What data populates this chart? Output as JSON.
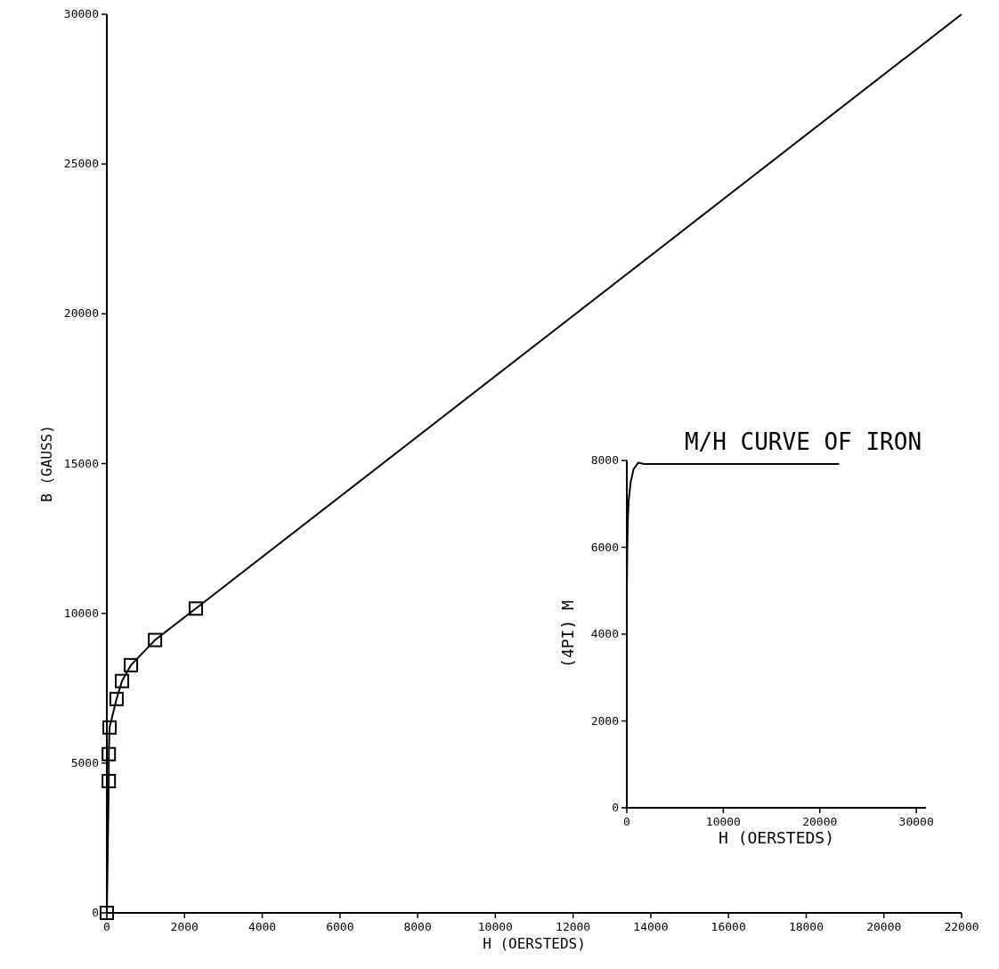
{
  "chart_data": [
    {
      "type": "line",
      "xlabel": "H (OERSTEDS)",
      "ylabel": "B (GAUSS)",
      "xlim": [
        0,
        22000
      ],
      "ylim": [
        0,
        30000
      ],
      "xticks": [
        0,
        2000,
        4000,
        6000,
        8000,
        10000,
        12000,
        14000,
        16000,
        18000,
        20000,
        22000
      ],
      "yticks": [
        0,
        5000,
        10000,
        15000,
        20000,
        25000,
        30000
      ],
      "series": [
        {
          "color": "#000000",
          "marker": "none",
          "x": [
            0,
            50,
            50,
            70,
            250,
            390,
            620,
            1240,
            2290,
            22000
          ],
          "values": [
            0,
            4400,
            5300,
            6190,
            7140,
            7740,
            8270,
            9110,
            10160,
            30000
          ]
        },
        {
          "type": "scatter",
          "color": "#000000",
          "marker": "square",
          "x": [
            0,
            50,
            50,
            70,
            250,
            390,
            620,
            1240,
            2290
          ],
          "values": [
            0,
            4400,
            5300,
            6190,
            7140,
            7740,
            8270,
            9110,
            10160
          ]
        }
      ]
    },
    {
      "type": "line",
      "title": "M/H CURVE OF IRON",
      "xlabel": "H (OERSTEDS)",
      "ylabel": "(4PI) M",
      "xlim": [
        0,
        31000
      ],
      "ylim": [
        0,
        8000
      ],
      "xticks": [
        0,
        10000,
        20000,
        30000
      ],
      "yticks": [
        0,
        2000,
        4000,
        6000,
        8000
      ],
      "series": [
        {
          "color": "#000000",
          "marker": "none",
          "x": [
            0,
            0,
            50,
            100,
            200,
            400,
            700,
            1200,
            1800,
            22000
          ],
          "values": [
            0,
            5000,
            6000,
            6600,
            7100,
            7500,
            7800,
            7950,
            7920,
            7920
          ]
        }
      ]
    }
  ]
}
